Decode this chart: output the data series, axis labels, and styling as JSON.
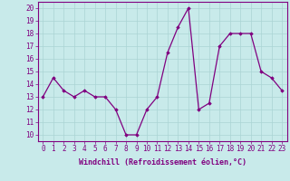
{
  "x": [
    0,
    1,
    2,
    3,
    4,
    5,
    6,
    7,
    8,
    9,
    10,
    11,
    12,
    13,
    14,
    15,
    16,
    17,
    18,
    19,
    20,
    21,
    22,
    23
  ],
  "y": [
    13,
    14.5,
    13.5,
    13,
    13.5,
    13,
    13,
    12,
    10,
    10,
    12,
    13,
    16.5,
    18.5,
    20,
    12,
    12.5,
    17,
    18,
    18,
    18,
    15,
    14.5,
    13.5
  ],
  "line_color": "#800080",
  "marker": "D",
  "marker_size": 1.8,
  "bg_color": "#c8eaea",
  "grid_color": "#aad4d4",
  "xlabel": "Windchill (Refroidissement éolien,°C)",
  "xlabel_fontsize": 6.0,
  "ylabel_ticks": [
    10,
    11,
    12,
    13,
    14,
    15,
    16,
    17,
    18,
    19,
    20
  ],
  "ylim": [
    9.5,
    20.5
  ],
  "xlim": [
    -0.5,
    23.5
  ],
  "tick_fontsize": 5.5,
  "linewidth": 0.9,
  "spine_color": "#800080",
  "title_bar_color": "#800080"
}
